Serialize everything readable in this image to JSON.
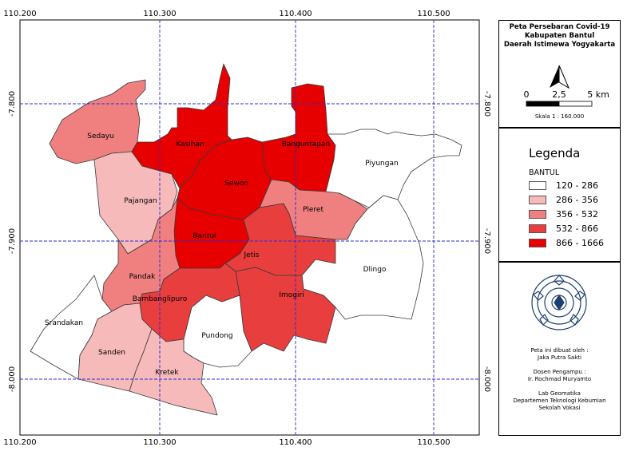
{
  "map": {
    "x_ticks": [
      "110.200",
      "110.300",
      "110.400",
      "110.500"
    ],
    "y_ticks": [
      "-7.800",
      "-7.900",
      "-8.000"
    ],
    "districts": [
      {
        "name": "Sedayu",
        "class": 2
      },
      {
        "name": "Pajangan",
        "class": 1
      },
      {
        "name": "Kasihan",
        "class": 4
      },
      {
        "name": "Sewon",
        "class": 4
      },
      {
        "name": "Banguntapan",
        "class": 4
      },
      {
        "name": "Bantul",
        "class": 4
      },
      {
        "name": "Pleret",
        "class": 2
      },
      {
        "name": "Piyungan",
        "class": 0
      },
      {
        "name": "Pandak",
        "class": 2
      },
      {
        "name": "Jetis",
        "class": 3
      },
      {
        "name": "Imogiri",
        "class": 3
      },
      {
        "name": "Dlingo",
        "class": 0
      },
      {
        "name": "Bambanglipuro",
        "class": 3
      },
      {
        "name": "Pundong",
        "class": 0
      },
      {
        "name": "Srandakan",
        "class": 0
      },
      {
        "name": "Sanden",
        "class": 1
      },
      {
        "name": "Kretek",
        "class": 1
      }
    ]
  },
  "title": {
    "line1": "Peta Persebaran Covid-19",
    "line2": "Kabupaten Bantul",
    "line3": "Daerah Istimewa Yogyakarta"
  },
  "scale": {
    "ticks": [
      "0",
      "2,5",
      "5 km"
    ],
    "caption": "Skala 1 : 160.000"
  },
  "legend": {
    "title": "Legenda",
    "subtitle": "BANTUL",
    "items": [
      {
        "label": "120 - 286",
        "color": "#ffffff"
      },
      {
        "label": "286 - 356",
        "color": "#f7baba"
      },
      {
        "label": "356 - 532",
        "color": "#f08080"
      },
      {
        "label": "532 - 866",
        "color": "#e83e3e"
      },
      {
        "label": "866 - 1666",
        "color": "#e60000"
      }
    ]
  },
  "credits": {
    "made_by_label": "Peta ini dibuat oleh :",
    "made_by_name": "Jaka Putra Sakti",
    "lecturer_label": "Dosen Pengampu :",
    "lecturer_name": "Ir. Rochmad Muryamto",
    "lab": "Lab Geomatika",
    "dept": "Departemen Teknologi Kebumian",
    "school": "Sekolah Vokasi"
  }
}
